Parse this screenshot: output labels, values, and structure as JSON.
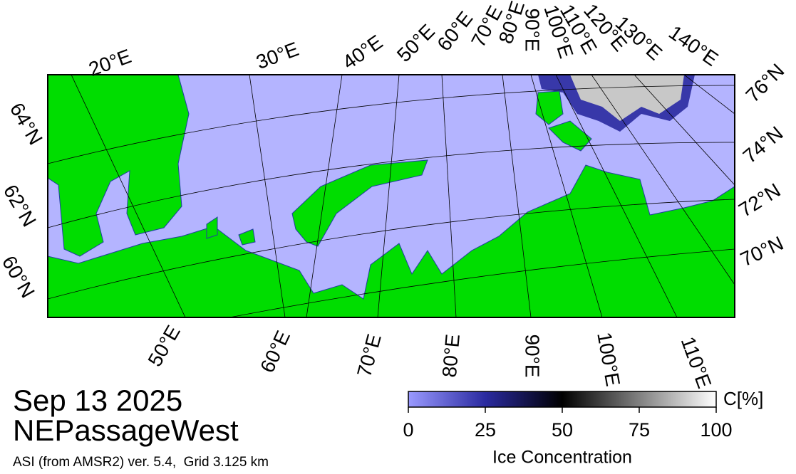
{
  "header": {
    "date": "Sep 13 2025",
    "region": "NEPassageWest",
    "product": "ASI (from AMSR2) ver. 5.4,  Grid 3.125 km"
  },
  "map": {
    "top_labels": [
      "20°E",
      "30°E",
      "40°E",
      "50°E",
      "60°E",
      "70°E",
      "80°E",
      "90°E",
      "100°E",
      "110°E",
      "120°E",
      "130°E",
      "140°E"
    ],
    "bottom_labels": [
      "50°E",
      "60°E",
      "70°E",
      "80°E",
      "90°E",
      "100°E",
      "110°E"
    ],
    "left_labels": [
      "64°N",
      "62°N",
      "60°N"
    ],
    "right_labels": [
      "76°N",
      "74°N",
      "72°N",
      "70°N"
    ]
  },
  "colorbar": {
    "unit": "C[%]",
    "label": "Ice Concentration",
    "range": [
      0,
      100
    ],
    "ticks": [
      0,
      25,
      50,
      75,
      100
    ]
  }
}
